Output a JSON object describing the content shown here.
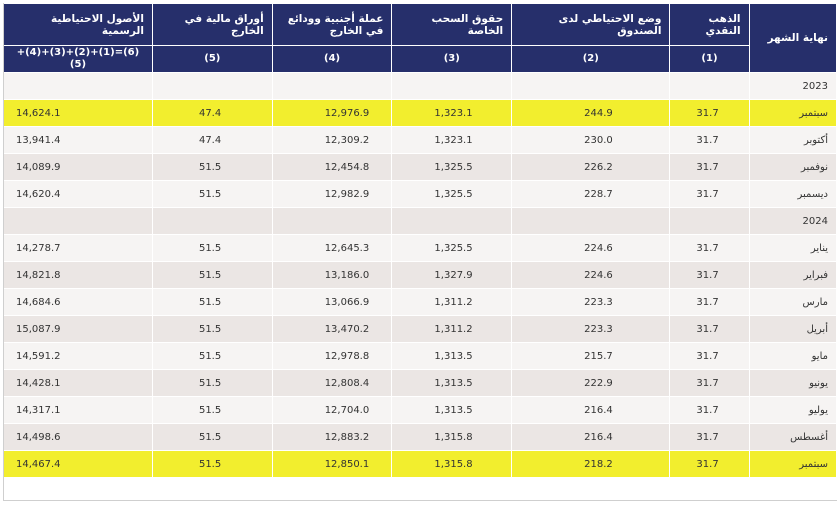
{
  "table": {
    "headers": {
      "month": "نهاية الشهر",
      "gold": "الذهب النقدي",
      "imf": "وضع الاحتياطي لدى الصندوق",
      "sdr": "حقوق السحب الخاصة",
      "fx": "عملة أجنبية وودائع في الخارج",
      "sec": "أوراق مالية في الخارج",
      "total": "الأصول الاحتياطية الرسمية"
    },
    "sub_headers": {
      "gold": "(1)",
      "imf": "(2)",
      "sdr": "(3)",
      "fx": "(4)",
      "sec": "(5)",
      "total": "(6)=(1)+(2)+(3)+(4)+(5)"
    },
    "rows": [
      {
        "type": "year",
        "label": "2023"
      },
      {
        "type": "data",
        "highlight": true,
        "month": "سبتمبر",
        "gold": "31.7",
        "imf": "244.9",
        "sdr": "1,323.1",
        "fx": "12,976.9",
        "sec": "47.4",
        "total": "14,624.1"
      },
      {
        "type": "data",
        "month": "أكتوبر",
        "gold": "31.7",
        "imf": "230.0",
        "sdr": "1,323.1",
        "fx": "12,309.2",
        "sec": "47.4",
        "total": "13,941.4"
      },
      {
        "type": "data",
        "month": "نوفمبر",
        "gold": "31.7",
        "imf": "226.2",
        "sdr": "1,325.5",
        "fx": "12,454.8",
        "sec": "51.5",
        "total": "14,089.9"
      },
      {
        "type": "data",
        "month": "ديسمبر",
        "gold": "31.7",
        "imf": "228.7",
        "sdr": "1,325.5",
        "fx": "12,982.9",
        "sec": "51.5",
        "total": "14,620.4"
      },
      {
        "type": "year",
        "label": "2024"
      },
      {
        "type": "data",
        "month": "يناير",
        "gold": "31.7",
        "imf": "224.6",
        "sdr": "1,325.5",
        "fx": "12,645.3",
        "sec": "51.5",
        "total": "14,278.7"
      },
      {
        "type": "data",
        "month": "فبراير",
        "gold": "31.7",
        "imf": "224.6",
        "sdr": "1,327.9",
        "fx": "13,186.0",
        "sec": "51.5",
        "total": "14,821.8"
      },
      {
        "type": "data",
        "month": "مارس",
        "gold": "31.7",
        "imf": "223.3",
        "sdr": "1,311.2",
        "fx": "13,066.9",
        "sec": "51.5",
        "total": "14,684.6"
      },
      {
        "type": "data",
        "month": "أبريل",
        "gold": "31.7",
        "imf": "223.3",
        "sdr": "1,311.2",
        "fx": "13,470.2",
        "sec": "51.5",
        "total": "15,087.9"
      },
      {
        "type": "data",
        "month": "مايو",
        "gold": "31.7",
        "imf": "215.7",
        "sdr": "1,313.5",
        "fx": "12,978.8",
        "sec": "51.5",
        "total": "14,591.2"
      },
      {
        "type": "data",
        "month": "يونيو",
        "gold": "31.7",
        "imf": "222.9",
        "sdr": "1,313.5",
        "fx": "12,808.4",
        "sec": "51.5",
        "total": "14,428.1"
      },
      {
        "type": "data",
        "month": "يوليو",
        "gold": "31.7",
        "imf": "216.4",
        "sdr": "1,313.5",
        "fx": "12,704.0",
        "sec": "51.5",
        "total": "14,317.1"
      },
      {
        "type": "data",
        "month": "أغسطس",
        "gold": "31.7",
        "imf": "216.4",
        "sdr": "1,315.8",
        "fx": "12,883.2",
        "sec": "51.5",
        "total": "14,498.6"
      },
      {
        "type": "data",
        "highlight": true,
        "month": "سبتمبر",
        "gold": "31.7",
        "imf": "218.2",
        "sdr": "1,315.8",
        "fx": "12,850.1",
        "sec": "51.5",
        "total": "14,467.4"
      }
    ]
  }
}
